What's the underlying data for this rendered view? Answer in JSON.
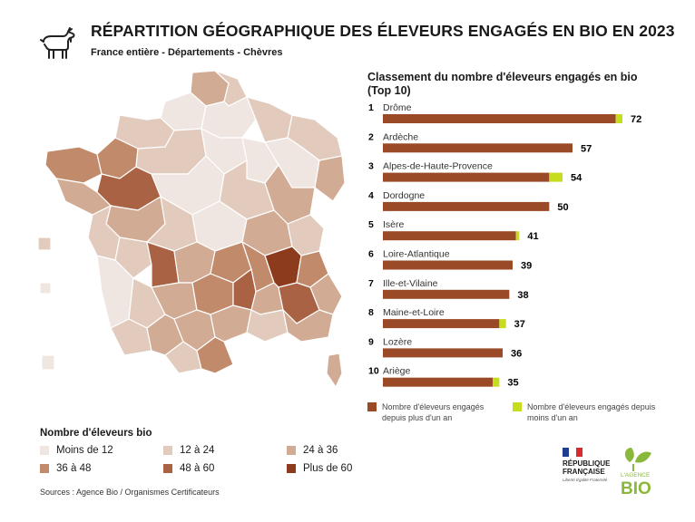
{
  "header": {
    "title": "RÉPARTITION GÉOGRAPHIQUE DES ÉLEVEURS ENGAGÉS EN BIO EN 2023",
    "subtitle": "France entière - Départements - Chèvres"
  },
  "chart_data": {
    "type": "bar",
    "title": "Classement du nombre d'éleveurs engagés en bio (Top 10)",
    "ranks": [
      "1",
      "2",
      "3",
      "4",
      "5",
      "6",
      "7",
      "8",
      "9",
      "10"
    ],
    "categories": [
      "Drôme",
      "Ardèche",
      "Alpes-de-Haute-Provence",
      "Dordogne",
      "Isère",
      "Loire-Atlantique",
      "Ille-et-Vilaine",
      "Maine-et-Loire",
      "Lozère",
      "Ariège"
    ],
    "totals": [
      "72",
      "57",
      "54",
      "50",
      "41",
      "39",
      "38",
      "37",
      "36",
      "35"
    ],
    "series": [
      {
        "name": "Nombre d'éleveurs engagés depuis plus d'un an",
        "color": "#9b4a28",
        "values": [
          70,
          57,
          50,
          50,
          40,
          39,
          38,
          35,
          36,
          33
        ]
      },
      {
        "name": "Nombre d'éleveurs engagés depuis moins d'un an",
        "color": "#c6dd1e",
        "values": [
          2,
          0,
          4,
          0,
          1,
          0,
          0,
          2,
          0,
          2
        ]
      }
    ],
    "xlim": [
      0,
      72
    ]
  },
  "map_legend": {
    "title": "Nombre d'éleveurs bio",
    "classes": [
      {
        "label": "Moins de 12",
        "color": "#efe6e1"
      },
      {
        "label": "12 à 24",
        "color": "#e2cbbd"
      },
      {
        "label": "24 à 36",
        "color": "#d2ab95"
      },
      {
        "label": "36 à 48",
        "color": "#c08a6b"
      },
      {
        "label": "48 à 60",
        "color": "#a96243"
      },
      {
        "label": "Plus de 60",
        "color": "#8c3b1c"
      }
    ]
  },
  "source": "Sources : Agence Bio / Organismes Certificateurs",
  "logos": {
    "republique": "RÉPUBLIQUE FRANÇAISE",
    "motto": "Liberté Égalité Fraternité",
    "agence_top": "L'AGENCE",
    "agence_bottom": "BIO"
  },
  "colors": {
    "accent_green": "#8ab83a",
    "map_border": "#ffffff"
  }
}
